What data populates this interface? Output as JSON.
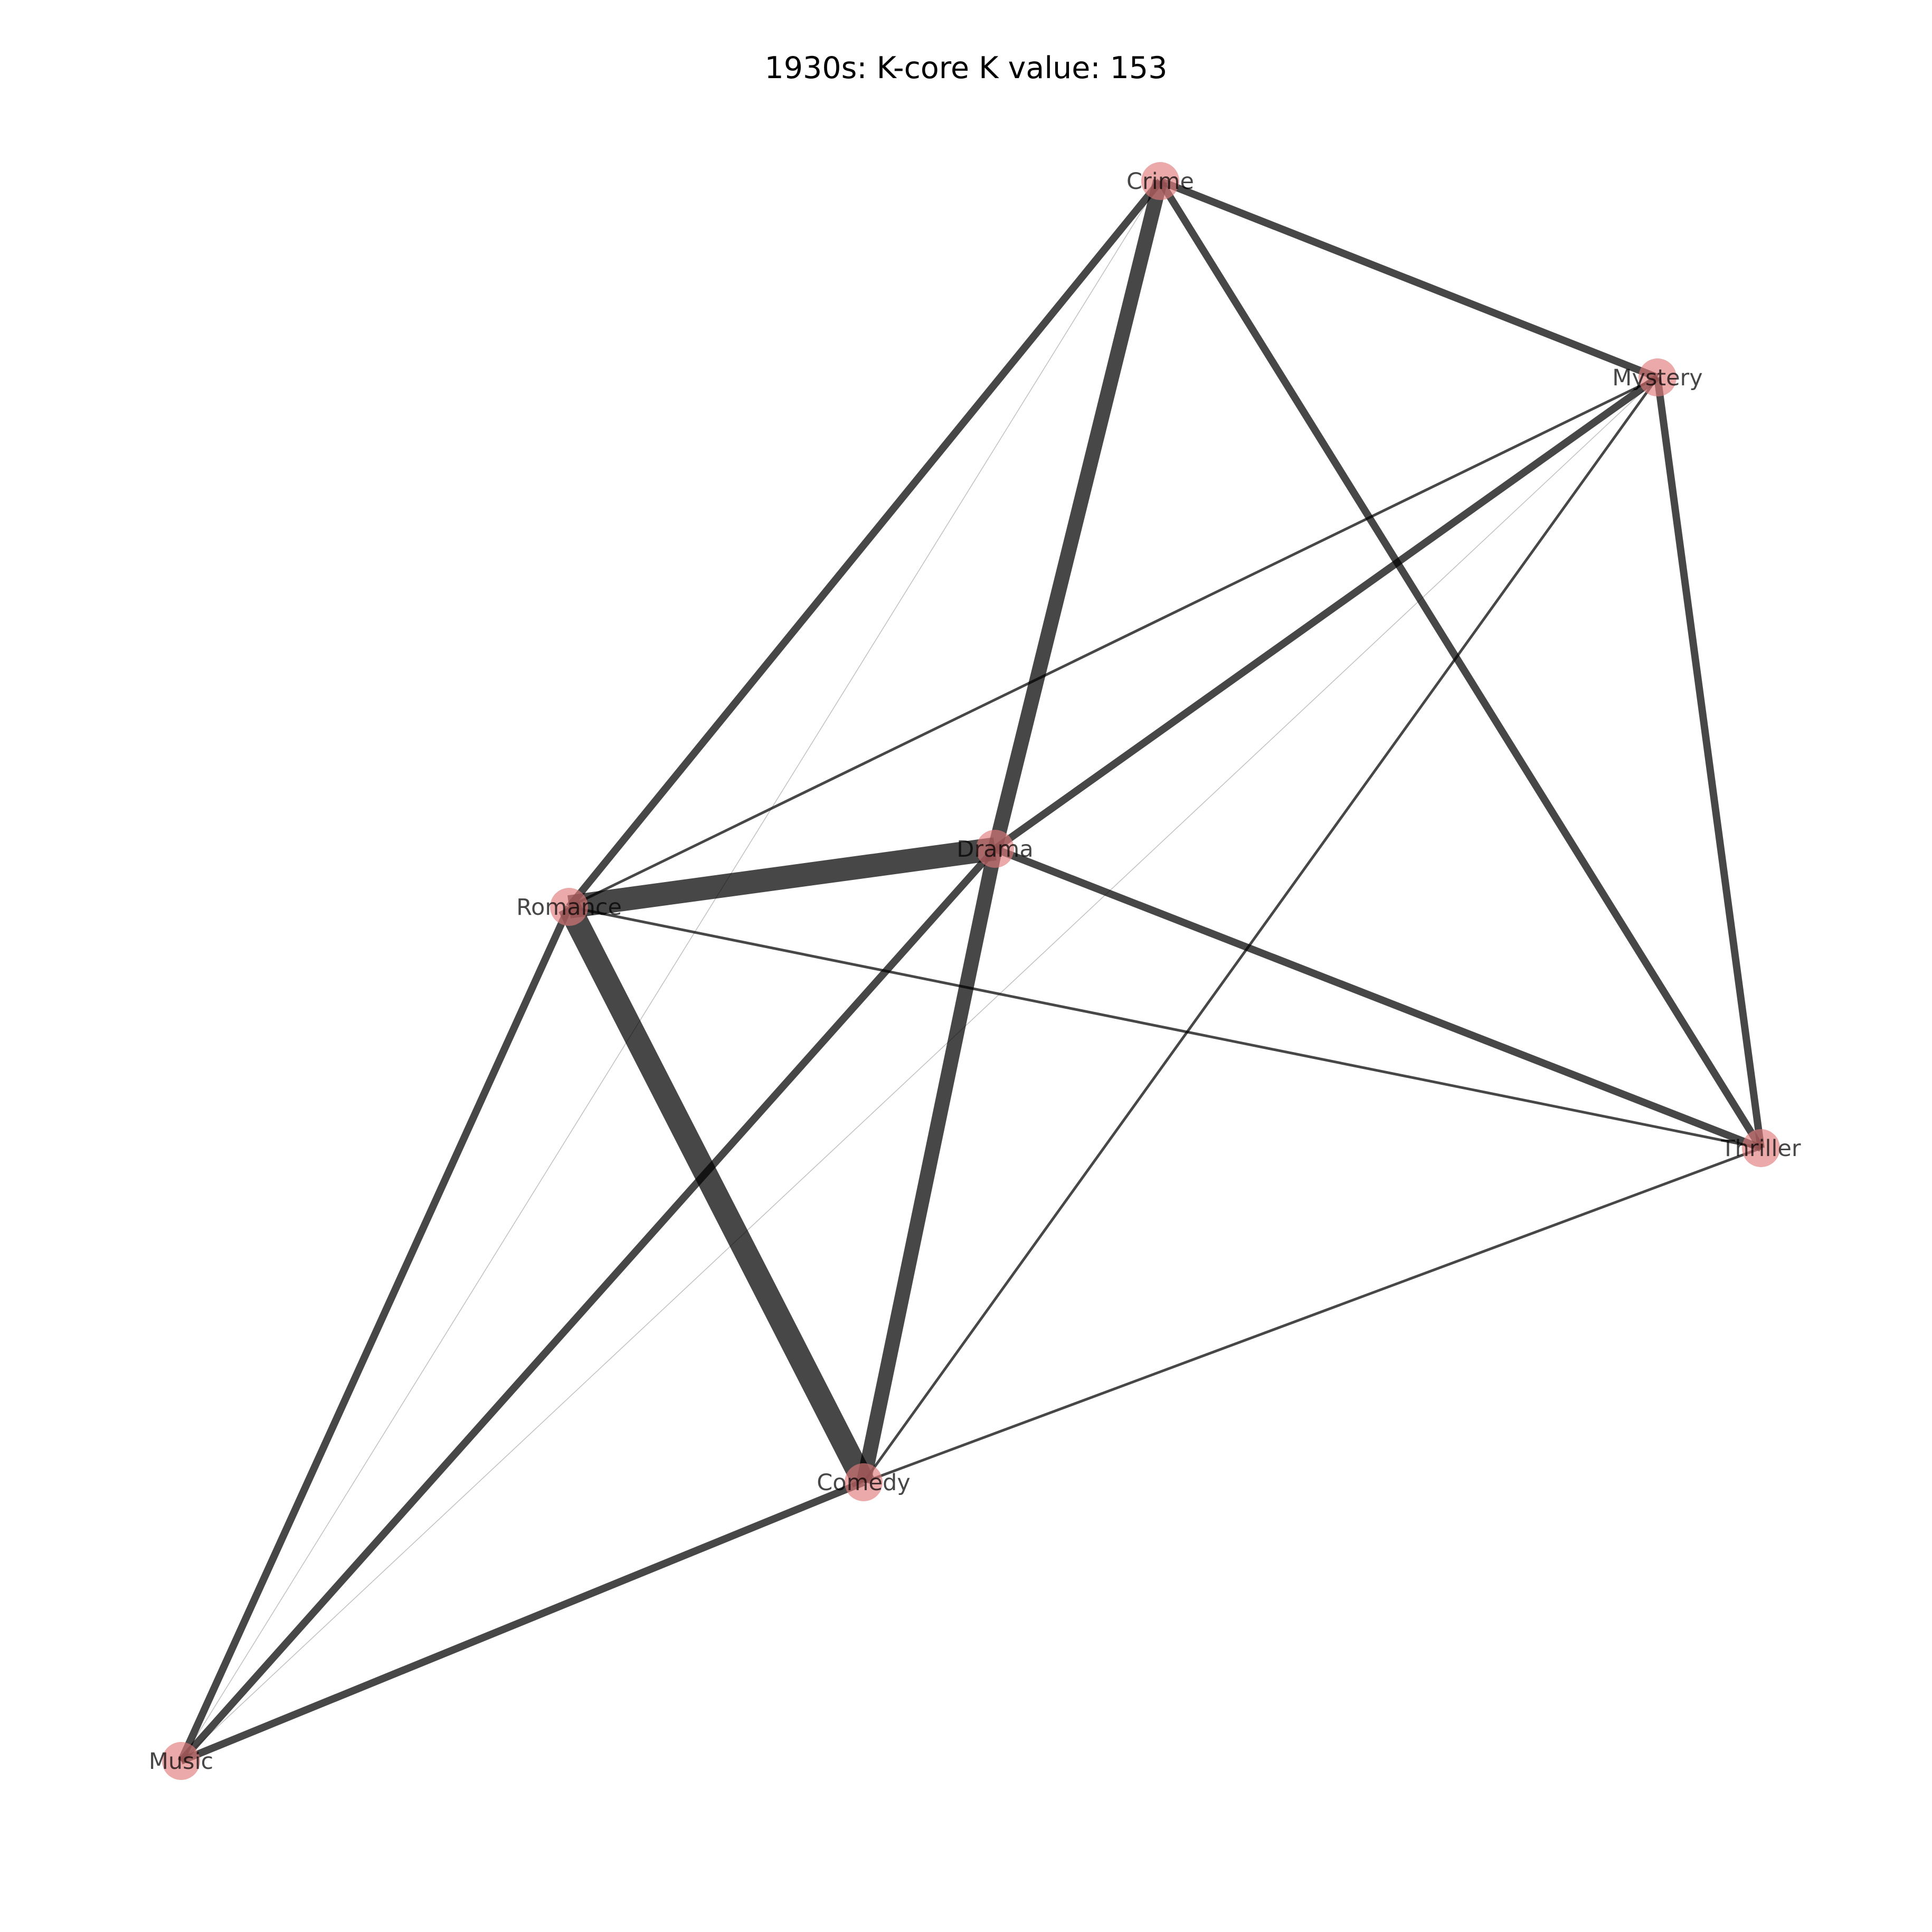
{
  "title": "1930s: K-core K value: 153",
  "colors": {
    "node_fill": "#e07b7b",
    "edge": "#000000",
    "background": "#ffffff"
  },
  "nodes": [
    {
      "id": "crime",
      "label": "Crime"
    },
    {
      "id": "mystery",
      "label": "Mystery"
    },
    {
      "id": "drama",
      "label": "Drama"
    },
    {
      "id": "romance",
      "label": "Romance"
    },
    {
      "id": "thriller",
      "label": "Thriller"
    },
    {
      "id": "comedy",
      "label": "Comedy"
    },
    {
      "id": "music",
      "label": "Music"
    }
  ],
  "edges": [
    {
      "source": "romance",
      "target": "drama",
      "weight": "very heavy"
    },
    {
      "source": "romance",
      "target": "comedy",
      "weight": "very heavy"
    },
    {
      "source": "drama",
      "target": "comedy",
      "weight": "heavy"
    },
    {
      "source": "drama",
      "target": "crime",
      "weight": "heavy"
    },
    {
      "source": "crime",
      "target": "mystery",
      "weight": "medium"
    },
    {
      "source": "crime",
      "target": "romance",
      "weight": "medium"
    },
    {
      "source": "crime",
      "target": "thriller",
      "weight": "medium"
    },
    {
      "source": "mystery",
      "target": "drama",
      "weight": "medium"
    },
    {
      "source": "mystery",
      "target": "thriller",
      "weight": "medium"
    },
    {
      "source": "drama",
      "target": "thriller",
      "weight": "medium"
    },
    {
      "source": "romance",
      "target": "music",
      "weight": "medium"
    },
    {
      "source": "drama",
      "target": "music",
      "weight": "medium"
    },
    {
      "source": "comedy",
      "target": "music",
      "weight": "medium"
    },
    {
      "source": "mystery",
      "target": "comedy",
      "weight": "light"
    },
    {
      "source": "mystery",
      "target": "romance",
      "weight": "light"
    },
    {
      "source": "romance",
      "target": "thriller",
      "weight": "light"
    },
    {
      "source": "comedy",
      "target": "thriller",
      "weight": "light"
    },
    {
      "source": "crime",
      "target": "music",
      "weight": "very light"
    },
    {
      "source": "mystery",
      "target": "music",
      "weight": "very light"
    }
  ]
}
